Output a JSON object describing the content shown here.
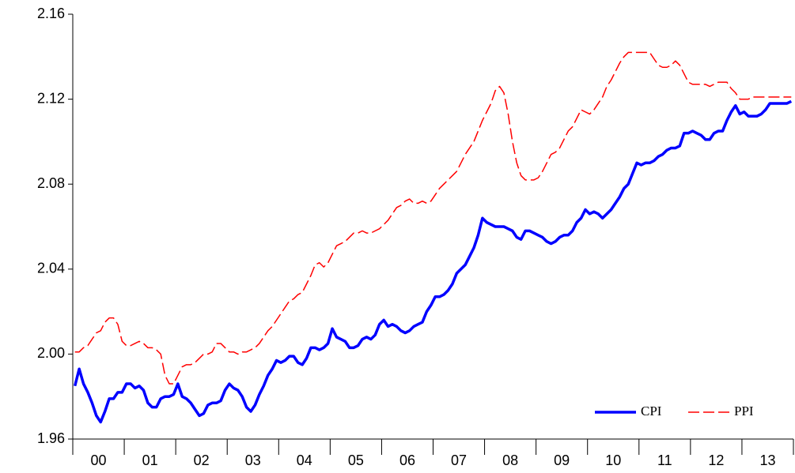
{
  "chart_data": {
    "type": "line",
    "categories": [
      null,
      null,
      null,
      null,
      null,
      null,
      "00",
      null,
      null,
      null,
      null,
      null,
      null,
      null,
      null,
      null,
      null,
      null,
      "01",
      null,
      null,
      null,
      null,
      null,
      null,
      null,
      null,
      null,
      null,
      null,
      "02",
      null,
      null,
      null,
      null,
      null,
      null,
      null,
      null,
      null,
      null,
      null,
      "03",
      null,
      null,
      null,
      null,
      null,
      null,
      null,
      null,
      null,
      null,
      null,
      "04",
      null,
      null,
      null,
      null,
      null,
      null,
      null,
      null,
      null,
      null,
      null,
      "05",
      null,
      null,
      null,
      null,
      null,
      null,
      null,
      null,
      null,
      null,
      null,
      "06",
      null,
      null,
      null,
      null,
      null,
      null,
      null,
      null,
      null,
      null,
      null,
      "07",
      null,
      null,
      null,
      null,
      null,
      null,
      null,
      null,
      null,
      null,
      null,
      "08",
      null,
      null,
      null,
      null,
      null,
      null,
      null,
      null,
      null,
      null,
      null,
      "09",
      null,
      null,
      null,
      null,
      null,
      null,
      null,
      null,
      null,
      null,
      null,
      "10",
      null,
      null,
      null,
      null,
      null,
      null,
      null,
      null,
      null,
      null,
      null,
      "11",
      null,
      null,
      null,
      null,
      null,
      null,
      null,
      null,
      null,
      null,
      null,
      "12",
      null,
      null,
      null,
      null,
      null,
      null,
      null,
      null,
      null,
      null,
      null,
      "13",
      null,
      null,
      null,
      null,
      null
    ],
    "series": [
      {
        "name": "CPI",
        "color": "#0000ff",
        "line_style": "solid",
        "values": [
          1.985,
          1.993,
          1.986,
          1.982,
          1.977,
          1.971,
          1.968,
          1.973,
          1.979,
          1.979,
          1.982,
          1.982,
          1.986,
          1.986,
          1.984,
          1.985,
          1.983,
          1.977,
          1.975,
          1.975,
          1.979,
          1.98,
          1.98,
          1.981,
          1.986,
          1.98,
          1.979,
          1.977,
          1.974,
          1.971,
          1.972,
          1.976,
          1.977,
          1.977,
          1.978,
          1.983,
          1.986,
          1.984,
          1.983,
          1.98,
          1.975,
          1.973,
          1.976,
          1.981,
          1.985,
          1.99,
          1.993,
          1.997,
          1.996,
          1.997,
          1.999,
          1.999,
          1.996,
          1.995,
          1.998,
          2.003,
          2.003,
          2.002,
          2.003,
          2.005,
          2.012,
          2.008,
          2.007,
          2.006,
          2.003,
          2.003,
          2.004,
          2.007,
          2.008,
          2.007,
          2.009,
          2.014,
          2.016,
          2.013,
          2.014,
          2.013,
          2.011,
          2.01,
          2.011,
          2.013,
          2.014,
          2.015,
          2.02,
          2.023,
          2.027,
          2.027,
          2.028,
          2.03,
          2.033,
          2.038,
          2.04,
          2.042,
          2.046,
          2.05,
          2.056,
          2.064,
          2.062,
          2.061,
          2.06,
          2.06,
          2.06,
          2.059,
          2.058,
          2.055,
          2.054,
          2.058,
          2.058,
          2.057,
          2.056,
          2.055,
          2.053,
          2.052,
          2.053,
          2.055,
          2.056,
          2.056,
          2.058,
          2.062,
          2.064,
          2.068,
          2.066,
          2.067,
          2.066,
          2.064,
          2.066,
          2.068,
          2.071,
          2.074,
          2.078,
          2.08,
          2.085,
          2.09,
          2.089,
          2.09,
          2.09,
          2.091,
          2.093,
          2.094,
          2.096,
          2.097,
          2.097,
          2.098,
          2.104,
          2.104,
          2.105,
          2.104,
          2.103,
          2.101,
          2.101,
          2.104,
          2.105,
          2.105,
          2.11,
          2.114,
          2.117,
          2.113,
          2.114,
          2.112,
          2.112,
          2.112,
          2.113,
          2.115,
          2.118,
          2.118,
          2.118,
          2.118,
          2.118,
          2.119
        ]
      },
      {
        "name": "PPI",
        "color": "#ff0000",
        "line_style": "dashed",
        "values": [
          2.001,
          2.001,
          2.003,
          2.004,
          2.007,
          2.01,
          2.011,
          2.015,
          2.017,
          2.017,
          2.014,
          2.006,
          2.004,
          2.004,
          2.005,
          2.006,
          2.005,
          2.003,
          2.003,
          2.002,
          2.0,
          1.99,
          1.986,
          1.986,
          1.99,
          1.994,
          1.995,
          1.995,
          1.996,
          1.998,
          2.0,
          2.0,
          2.001,
          2.005,
          2.005,
          2.003,
          2.001,
          2.001,
          2.0,
          2.001,
          2.001,
          2.002,
          2.003,
          2.005,
          2.008,
          2.011,
          2.013,
          2.016,
          2.019,
          2.022,
          2.025,
          2.026,
          2.028,
          2.029,
          2.033,
          2.037,
          2.042,
          2.043,
          2.041,
          2.043,
          2.047,
          2.051,
          2.052,
          2.053,
          2.055,
          2.057,
          2.057,
          2.058,
          2.057,
          2.057,
          2.058,
          2.059,
          2.061,
          2.063,
          2.066,
          2.069,
          2.07,
          2.072,
          2.073,
          2.071,
          2.071,
          2.072,
          2.071,
          2.072,
          2.075,
          2.078,
          2.08,
          2.082,
          2.084,
          2.086,
          2.09,
          2.094,
          2.097,
          2.1,
          2.105,
          2.11,
          2.114,
          2.118,
          2.124,
          2.126,
          2.123,
          2.113,
          2.1,
          2.09,
          2.084,
          2.082,
          2.082,
          2.082,
          2.083,
          2.086,
          2.09,
          2.094,
          2.095,
          2.097,
          2.101,
          2.105,
          2.107,
          2.111,
          2.115,
          2.114,
          2.113,
          2.115,
          2.118,
          2.121,
          2.126,
          2.129,
          2.133,
          2.137,
          2.14,
          2.142,
          2.142,
          2.142,
          2.142,
          2.142,
          2.142,
          2.139,
          2.136,
          2.135,
          2.135,
          2.136,
          2.138,
          2.136,
          2.132,
          2.128,
          2.127,
          2.127,
          2.127,
          2.127,
          2.126,
          2.127,
          2.128,
          2.128,
          2.128,
          2.125,
          2.123,
          2.12,
          2.12,
          2.12,
          2.121,
          2.121,
          2.121,
          2.121,
          2.121,
          2.121,
          2.121,
          2.121,
          2.121,
          2.121
        ]
      }
    ],
    "ylim": [
      1.96,
      2.16
    ],
    "yticks": [
      1.96,
      {
        "value": 2,
        "label": "2.00"
      },
      2.04,
      2.08,
      2.12,
      2.16
    ],
    "grid": false,
    "legend_position": "lower right"
  }
}
